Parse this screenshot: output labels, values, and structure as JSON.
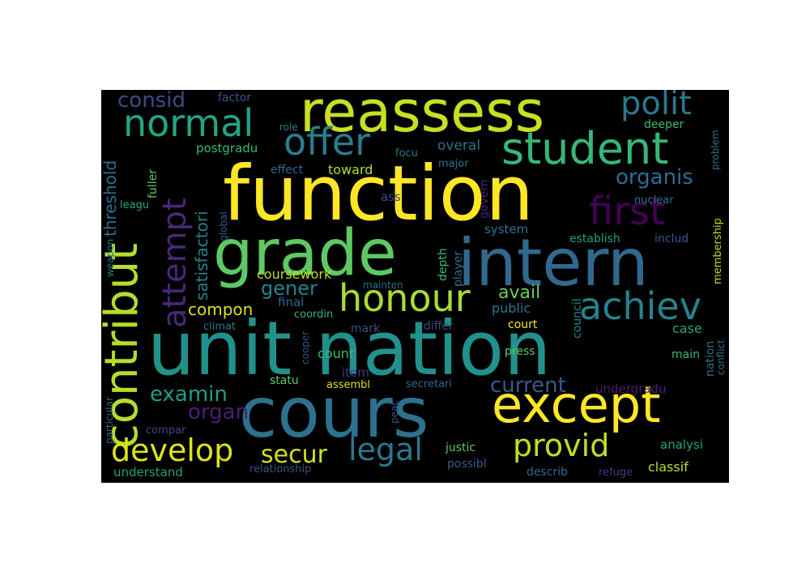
{
  "wordcloud": {
    "words": [
      {
        "text": "unit nation",
        "color": "#21918c"
      },
      {
        "text": "function",
        "color": "#fde725"
      },
      {
        "text": "cours",
        "color": "#2c728e"
      },
      {
        "text": "grade",
        "color": "#5ec962"
      },
      {
        "text": "intern",
        "color": "#31688e"
      },
      {
        "text": "reassess",
        "color": "#c8e020"
      },
      {
        "text": "except",
        "color": "#fde725"
      },
      {
        "text": "contribut",
        "color": "#b5de2b"
      },
      {
        "text": "student",
        "color": "#35b779"
      },
      {
        "text": "honour",
        "color": "#aadc32"
      },
      {
        "text": "achiev",
        "color": "#26828e"
      },
      {
        "text": "first",
        "color": "#440154"
      },
      {
        "text": "attempt",
        "color": "#482878"
      },
      {
        "text": "offer",
        "color": "#277f8e"
      },
      {
        "text": "normal",
        "color": "#21a685"
      },
      {
        "text": "polit",
        "color": "#2a788e"
      },
      {
        "text": "develop",
        "color": "#dde318"
      },
      {
        "text": "provid",
        "color": "#c0df25"
      },
      {
        "text": "legal",
        "color": "#2a788e"
      },
      {
        "text": "secur",
        "color": "#d2e21b"
      },
      {
        "text": "current",
        "color": "#38598c"
      },
      {
        "text": "examin",
        "color": "#1f9e89"
      },
      {
        "text": "organis",
        "color": "#2e6e8e"
      },
      {
        "text": "consid",
        "color": "#3e4a89"
      },
      {
        "text": "gener",
        "color": "#25838e"
      },
      {
        "text": "compon",
        "color": "#d8e219"
      },
      {
        "text": "organ",
        "color": "#481f70"
      },
      {
        "text": "avail",
        "color": "#6ccd5a"
      },
      {
        "text": "satisfactori",
        "color": "#26818e"
      },
      {
        "text": "threshold",
        "color": "#2e6f8e"
      },
      {
        "text": "coursework",
        "color": "#bddf26"
      },
      {
        "text": "count",
        "color": "#3bbb75"
      },
      {
        "text": "overal",
        "color": "#2d708e"
      },
      {
        "text": "toward",
        "color": "#b2dd2d"
      },
      {
        "text": "establish",
        "color": "#1fa187"
      },
      {
        "text": "public",
        "color": "#2b758e"
      },
      {
        "text": "case",
        "color": "#22a884"
      },
      {
        "text": "system",
        "color": "#2c738e"
      },
      {
        "text": "postgradu",
        "color": "#38b977"
      },
      {
        "text": "effect",
        "color": "#31688e"
      },
      {
        "text": "factor",
        "color": "#3b528b"
      },
      {
        "text": "role",
        "color": "#277f8e"
      },
      {
        "text": "deeper",
        "color": "#3bbb75"
      },
      {
        "text": "fuller",
        "color": "#5ec962"
      },
      {
        "text": "ass",
        "color": "#3e4989"
      },
      {
        "text": "major",
        "color": "#2c728e"
      },
      {
        "text": "focu",
        "color": "#2a768e"
      },
      {
        "text": "govern",
        "color": "#482475"
      },
      {
        "text": "nuclear",
        "color": "#2d708e"
      },
      {
        "text": "includ",
        "color": "#39568c"
      },
      {
        "text": "membership",
        "color": "#bade28"
      },
      {
        "text": "problem",
        "color": "#2c738e"
      },
      {
        "text": "leagu",
        "color": "#22a884"
      },
      {
        "text": "global",
        "color": "#34618d"
      },
      {
        "text": "weapon",
        "color": "#2a778e"
      },
      {
        "text": "player",
        "color": "#2d708e"
      },
      {
        "text": "depth",
        "color": "#3fbc73"
      },
      {
        "text": "mainten",
        "color": "#2c728e"
      },
      {
        "text": "final",
        "color": "#32658e"
      },
      {
        "text": "coordin",
        "color": "#32b67a"
      },
      {
        "text": "climat",
        "color": "#2a788e"
      },
      {
        "text": "mark",
        "color": "#3b528b"
      },
      {
        "text": "differ",
        "color": "#3e4a89"
      },
      {
        "text": "court",
        "color": "#fde725"
      },
      {
        "text": "council",
        "color": "#25848e"
      },
      {
        "text": "press",
        "color": "#5ec962"
      },
      {
        "text": "main",
        "color": "#35b779"
      },
      {
        "text": "nation",
        "color": "#2c728e"
      },
      {
        "text": "conflict",
        "color": "#31688e"
      },
      {
        "text": "cooper",
        "color": "#3b528b"
      },
      {
        "text": "item",
        "color": "#443983"
      },
      {
        "text": "statu",
        "color": "#5ec962"
      },
      {
        "text": "assembl",
        "color": "#d8e219"
      },
      {
        "text": "secretari",
        "color": "#30688e"
      },
      {
        "text": "undergradu",
        "color": "#481f70"
      },
      {
        "text": "particular",
        "color": "#30688e"
      },
      {
        "text": "compar",
        "color": "#3e4989"
      },
      {
        "text": "peac",
        "color": "#3b528b"
      },
      {
        "text": "justic",
        "color": "#5ec962"
      },
      {
        "text": "analysi",
        "color": "#21a685"
      },
      {
        "text": "possibl",
        "color": "#38598c"
      },
      {
        "text": "describ",
        "color": "#31688e"
      },
      {
        "text": "refuge",
        "color": "#443983"
      },
      {
        "text": "classif",
        "color": "#b5de2b"
      },
      {
        "text": "understand",
        "color": "#1fa187"
      },
      {
        "text": "relationship",
        "color": "#3b528b"
      }
    ]
  }
}
